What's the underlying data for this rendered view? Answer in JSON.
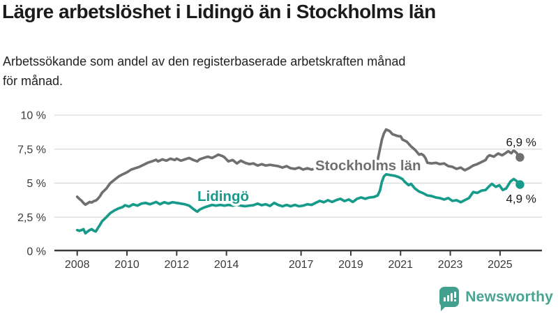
{
  "header": {
    "title": "Lägre arbetslöshet i Lidingö än i Stockholms län",
    "subtitle_line1": "Arbetssökande som andel av den registerbaserade arbetskraften månad",
    "subtitle_line2": "för månad."
  },
  "branding": {
    "logo_text": "Newsworthy",
    "logo_color": "#47a392",
    "logo_icon": "bar-chart-speech-bubble-icon"
  },
  "chart_data": {
    "type": "line",
    "title": "Lägre arbetslöshet i Lidingö än i Stockholms län",
    "xlabel": "",
    "ylabel": "",
    "ylim": [
      0,
      10
    ],
    "xlim": [
      2007.1,
      2026.7
    ],
    "grid": "horizontal",
    "legend_position": "inline-labels",
    "y_tick_values": [
      10,
      7.5,
      5,
      2.5,
      0
    ],
    "y_tick_labels": [
      "10 %",
      "7,5 %",
      "5 %",
      "2,5 %",
      "0 %"
    ],
    "x_tick_values": [
      2008,
      2010,
      2012,
      2014,
      2017,
      2019,
      2021,
      2023,
      2025
    ],
    "x_tick_labels": [
      "2008",
      "2010",
      "2012",
      "2014",
      "2017",
      "2019",
      "2021",
      "2023",
      "2025"
    ],
    "axis_color": "#3a3a3a",
    "grid_color": "#d9d9d9",
    "series": [
      {
        "name": "Stockholms län",
        "color": "#6f6f6f",
        "end_label": "6,9 %",
        "end_value": 6.9,
        "points": [
          [
            2008.0,
            4.0
          ],
          [
            2008.08,
            3.85
          ],
          [
            2008.17,
            3.72
          ],
          [
            2008.25,
            3.55
          ],
          [
            2008.33,
            3.42
          ],
          [
            2008.42,
            3.52
          ],
          [
            2008.5,
            3.62
          ],
          [
            2008.58,
            3.58
          ],
          [
            2008.67,
            3.68
          ],
          [
            2008.75,
            3.72
          ],
          [
            2008.83,
            3.85
          ],
          [
            2008.92,
            4.05
          ],
          [
            2009.0,
            4.3
          ],
          [
            2009.17,
            4.6
          ],
          [
            2009.33,
            5.0
          ],
          [
            2009.5,
            5.25
          ],
          [
            2009.67,
            5.5
          ],
          [
            2009.83,
            5.65
          ],
          [
            2010.0,
            5.8
          ],
          [
            2010.17,
            6.0
          ],
          [
            2010.33,
            6.1
          ],
          [
            2010.5,
            6.2
          ],
          [
            2010.67,
            6.35
          ],
          [
            2010.83,
            6.5
          ],
          [
            2011.0,
            6.6
          ],
          [
            2011.17,
            6.72
          ],
          [
            2011.25,
            6.6
          ],
          [
            2011.42,
            6.75
          ],
          [
            2011.58,
            6.65
          ],
          [
            2011.75,
            6.8
          ],
          [
            2011.92,
            6.7
          ],
          [
            2012.0,
            6.8
          ],
          [
            2012.17,
            6.65
          ],
          [
            2012.33,
            6.75
          ],
          [
            2012.5,
            6.85
          ],
          [
            2012.67,
            6.7
          ],
          [
            2012.83,
            6.6
          ],
          [
            2012.92,
            6.75
          ],
          [
            2013.08,
            6.85
          ],
          [
            2013.25,
            6.95
          ],
          [
            2013.42,
            6.85
          ],
          [
            2013.58,
            7.0
          ],
          [
            2013.67,
            7.1
          ],
          [
            2013.83,
            7.0
          ],
          [
            2013.92,
            6.9
          ],
          [
            2014.08,
            6.6
          ],
          [
            2014.25,
            6.7
          ],
          [
            2014.42,
            6.45
          ],
          [
            2014.58,
            6.65
          ],
          [
            2014.75,
            6.5
          ],
          [
            2014.92,
            6.4
          ],
          [
            2015.08,
            6.45
          ],
          [
            2015.25,
            6.3
          ],
          [
            2015.42,
            6.4
          ],
          [
            2015.58,
            6.3
          ],
          [
            2015.75,
            6.35
          ],
          [
            2015.92,
            6.3
          ],
          [
            2016.08,
            6.25
          ],
          [
            2016.25,
            6.15
          ],
          [
            2016.42,
            6.25
          ],
          [
            2016.58,
            6.1
          ],
          [
            2016.75,
            6.05
          ],
          [
            2016.92,
            6.15
          ],
          [
            2017.08,
            6.0
          ],
          [
            2017.25,
            6.1
          ],
          [
            2017.42,
            6.0
          ],
          [
            2017.58,
            6.1
          ],
          [
            2017.75,
            6.0
          ],
          [
            2017.92,
            6.05
          ],
          [
            2018.08,
            5.95
          ],
          [
            2018.25,
            6.0
          ],
          [
            2018.42,
            5.95
          ],
          [
            2018.58,
            6.0
          ],
          [
            2018.75,
            5.95
          ],
          [
            2018.92,
            6.0
          ],
          [
            2019.08,
            5.95
          ],
          [
            2019.25,
            6.0
          ],
          [
            2019.42,
            6.0
          ],
          [
            2019.58,
            6.05
          ],
          [
            2019.75,
            6.05
          ],
          [
            2019.92,
            6.15
          ],
          [
            2020.08,
            6.7
          ],
          [
            2020.17,
            7.5
          ],
          [
            2020.25,
            8.2
          ],
          [
            2020.33,
            8.65
          ],
          [
            2020.42,
            8.95
          ],
          [
            2020.5,
            8.88
          ],
          [
            2020.58,
            8.8
          ],
          [
            2020.67,
            8.6
          ],
          [
            2020.75,
            8.55
          ],
          [
            2020.83,
            8.5
          ],
          [
            2020.92,
            8.45
          ],
          [
            2021.0,
            8.45
          ],
          [
            2021.08,
            8.2
          ],
          [
            2021.25,
            8.05
          ],
          [
            2021.42,
            7.7
          ],
          [
            2021.58,
            7.45
          ],
          [
            2021.75,
            7.1
          ],
          [
            2021.83,
            7.15
          ],
          [
            2021.92,
            7.05
          ],
          [
            2022.0,
            6.85
          ],
          [
            2022.08,
            6.5
          ],
          [
            2022.25,
            6.45
          ],
          [
            2022.42,
            6.5
          ],
          [
            2022.58,
            6.4
          ],
          [
            2022.75,
            6.45
          ],
          [
            2022.92,
            6.25
          ],
          [
            2023.08,
            6.2
          ],
          [
            2023.25,
            6.05
          ],
          [
            2023.42,
            6.15
          ],
          [
            2023.58,
            5.95
          ],
          [
            2023.75,
            6.1
          ],
          [
            2023.92,
            6.3
          ],
          [
            2024.08,
            6.4
          ],
          [
            2024.25,
            6.55
          ],
          [
            2024.42,
            6.7
          ],
          [
            2024.5,
            6.95
          ],
          [
            2024.58,
            7.05
          ],
          [
            2024.75,
            6.95
          ],
          [
            2024.92,
            7.18
          ],
          [
            2025.08,
            7.05
          ],
          [
            2025.17,
            7.15
          ],
          [
            2025.33,
            7.35
          ],
          [
            2025.45,
            7.2
          ],
          [
            2025.55,
            7.4
          ],
          [
            2025.65,
            7.25
          ],
          [
            2025.8,
            6.9
          ]
        ]
      },
      {
        "name": "Lidingö",
        "color": "#169b8b",
        "end_label": "4,9 %",
        "end_value": 4.9,
        "points": [
          [
            2008.0,
            1.55
          ],
          [
            2008.08,
            1.5
          ],
          [
            2008.17,
            1.55
          ],
          [
            2008.25,
            1.62
          ],
          [
            2008.33,
            1.32
          ],
          [
            2008.42,
            1.45
          ],
          [
            2008.5,
            1.55
          ],
          [
            2008.58,
            1.62
          ],
          [
            2008.67,
            1.5
          ],
          [
            2008.75,
            1.45
          ],
          [
            2008.83,
            1.7
          ],
          [
            2008.92,
            1.95
          ],
          [
            2009.0,
            2.2
          ],
          [
            2009.17,
            2.5
          ],
          [
            2009.33,
            2.8
          ],
          [
            2009.5,
            3.0
          ],
          [
            2009.67,
            3.15
          ],
          [
            2009.83,
            3.25
          ],
          [
            2009.92,
            3.38
          ],
          [
            2010.08,
            3.28
          ],
          [
            2010.25,
            3.45
          ],
          [
            2010.42,
            3.35
          ],
          [
            2010.58,
            3.5
          ],
          [
            2010.75,
            3.55
          ],
          [
            2010.92,
            3.45
          ],
          [
            2011.08,
            3.55
          ],
          [
            2011.17,
            3.62
          ],
          [
            2011.33,
            3.45
          ],
          [
            2011.5,
            3.6
          ],
          [
            2011.67,
            3.5
          ],
          [
            2011.83,
            3.6
          ],
          [
            2012.0,
            3.55
          ],
          [
            2012.17,
            3.5
          ],
          [
            2012.33,
            3.45
          ],
          [
            2012.5,
            3.35
          ],
          [
            2012.67,
            3.1
          ],
          [
            2012.83,
            2.9
          ],
          [
            2012.92,
            3.05
          ],
          [
            2013.08,
            3.2
          ],
          [
            2013.25,
            3.3
          ],
          [
            2013.42,
            3.4
          ],
          [
            2013.58,
            3.35
          ],
          [
            2013.75,
            3.4
          ],
          [
            2013.92,
            3.35
          ],
          [
            2014.08,
            3.4
          ],
          [
            2014.25,
            3.35
          ],
          [
            2014.42,
            3.4
          ],
          [
            2014.58,
            3.35
          ],
          [
            2014.75,
            3.3
          ],
          [
            2014.92,
            3.35
          ],
          [
            2015.08,
            3.38
          ],
          [
            2015.25,
            3.5
          ],
          [
            2015.42,
            3.38
          ],
          [
            2015.58,
            3.45
          ],
          [
            2015.75,
            3.33
          ],
          [
            2015.92,
            3.55
          ],
          [
            2016.08,
            3.4
          ],
          [
            2016.25,
            3.3
          ],
          [
            2016.42,
            3.4
          ],
          [
            2016.58,
            3.3
          ],
          [
            2016.75,
            3.4
          ],
          [
            2016.92,
            3.3
          ],
          [
            2017.08,
            3.35
          ],
          [
            2017.25,
            3.45
          ],
          [
            2017.42,
            3.4
          ],
          [
            2017.58,
            3.55
          ],
          [
            2017.75,
            3.7
          ],
          [
            2017.92,
            3.6
          ],
          [
            2018.08,
            3.75
          ],
          [
            2018.25,
            3.62
          ],
          [
            2018.42,
            3.76
          ],
          [
            2018.58,
            3.85
          ],
          [
            2018.75,
            3.68
          ],
          [
            2018.92,
            3.8
          ],
          [
            2019.08,
            3.62
          ],
          [
            2019.25,
            3.85
          ],
          [
            2019.42,
            3.95
          ],
          [
            2019.58,
            3.85
          ],
          [
            2019.75,
            3.95
          ],
          [
            2019.92,
            3.98
          ],
          [
            2020.08,
            4.1
          ],
          [
            2020.17,
            4.45
          ],
          [
            2020.25,
            5.1
          ],
          [
            2020.33,
            5.5
          ],
          [
            2020.42,
            5.65
          ],
          [
            2020.58,
            5.6
          ],
          [
            2020.75,
            5.55
          ],
          [
            2020.92,
            5.45
          ],
          [
            2021.08,
            5.3
          ],
          [
            2021.17,
            5.1
          ],
          [
            2021.33,
            4.85
          ],
          [
            2021.42,
            4.95
          ],
          [
            2021.58,
            4.6
          ],
          [
            2021.75,
            4.38
          ],
          [
            2021.92,
            4.25
          ],
          [
            2022.08,
            4.1
          ],
          [
            2022.25,
            4.05
          ],
          [
            2022.42,
            3.95
          ],
          [
            2022.58,
            3.9
          ],
          [
            2022.75,
            3.8
          ],
          [
            2022.92,
            3.9
          ],
          [
            2023.08,
            3.7
          ],
          [
            2023.25,
            3.75
          ],
          [
            2023.42,
            3.6
          ],
          [
            2023.58,
            3.75
          ],
          [
            2023.75,
            3.9
          ],
          [
            2023.92,
            4.35
          ],
          [
            2024.08,
            4.28
          ],
          [
            2024.25,
            4.45
          ],
          [
            2024.42,
            4.5
          ],
          [
            2024.58,
            4.8
          ],
          [
            2024.67,
            4.95
          ],
          [
            2024.83,
            4.73
          ],
          [
            2024.97,
            4.85
          ],
          [
            2025.11,
            4.5
          ],
          [
            2025.25,
            4.62
          ],
          [
            2025.42,
            5.13
          ],
          [
            2025.55,
            5.3
          ],
          [
            2025.65,
            5.18
          ],
          [
            2025.8,
            4.9
          ]
        ]
      }
    ]
  }
}
